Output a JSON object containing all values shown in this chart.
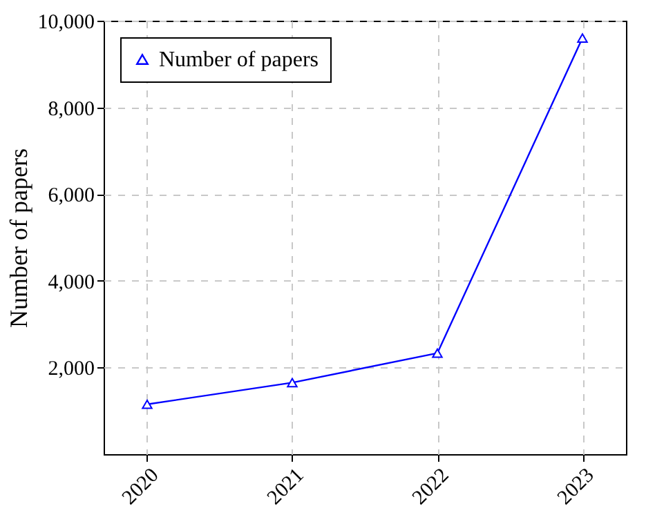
{
  "chart_data": {
    "type": "line",
    "ylabel": "Number of papers",
    "x": [
      2020,
      2021,
      2022,
      2023
    ],
    "series": [
      {
        "name": "Number of papers",
        "color": "#0000ff",
        "values": [
          1150,
          1650,
          2330,
          9600
        ]
      }
    ],
    "xlim": [
      2019.7,
      2023.3
    ],
    "xticks": [
      2020,
      2021,
      2022,
      2023
    ],
    "ylim": [
      0,
      10000
    ],
    "yticks": [
      {
        "value": 2000,
        "label": "2,000"
      },
      {
        "value": 4000,
        "label": "4,000"
      },
      {
        "value": 6000,
        "label": "6,000"
      },
      {
        "value": 8000,
        "label": "8,000"
      },
      {
        "value": 10000,
        "label": "10,000"
      }
    ],
    "grid": true,
    "legend": "top left",
    "marker": "triangle",
    "line_style": "solid"
  }
}
